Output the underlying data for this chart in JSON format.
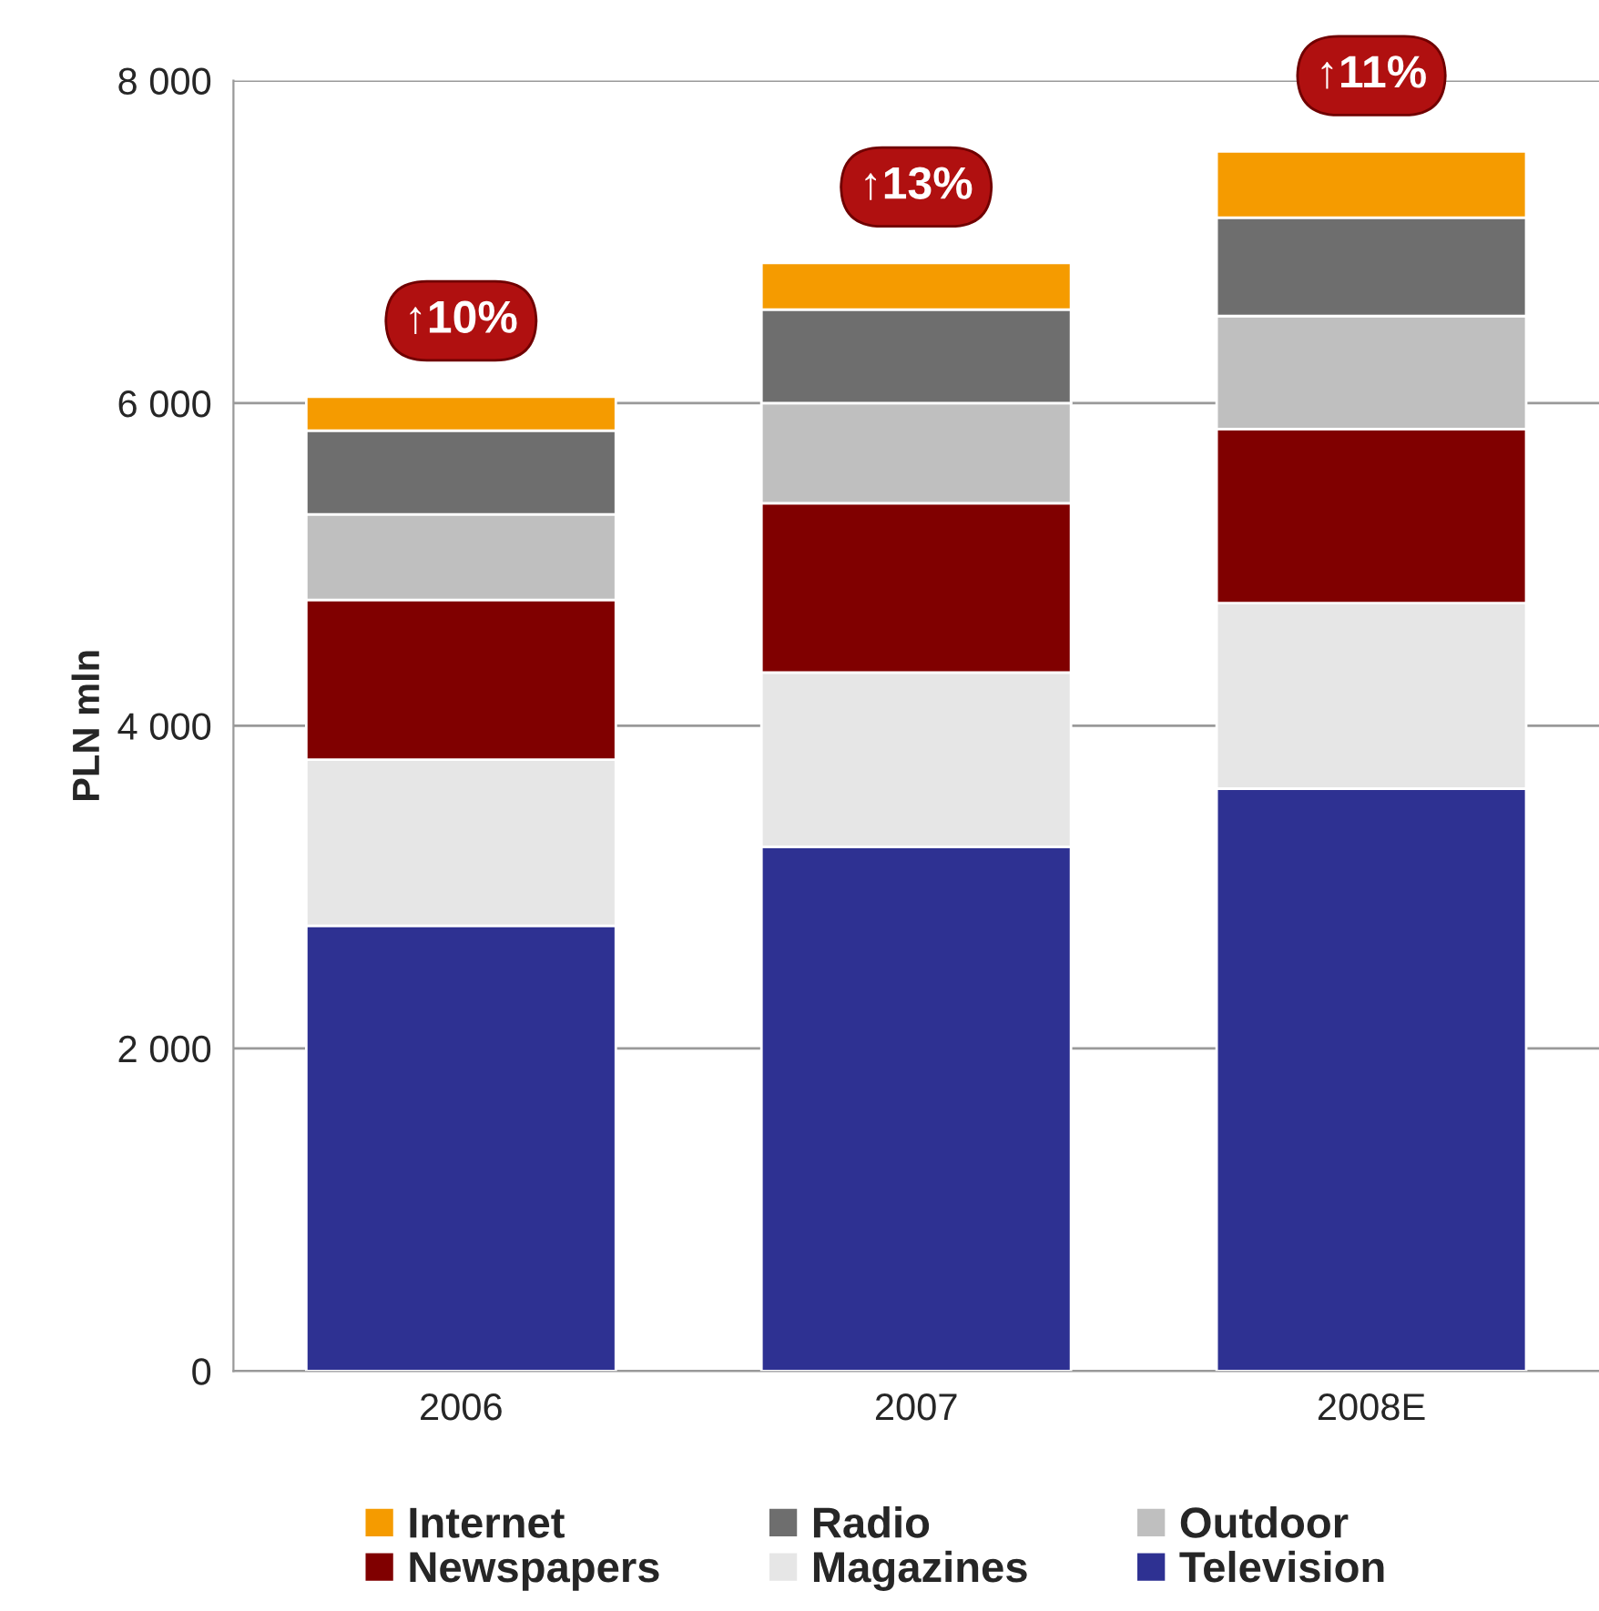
{
  "chart_data": {
    "type": "bar",
    "stacked": true,
    "ylabel": "PLN mln",
    "categories": [
      "2006",
      "2007",
      "2008E"
    ],
    "series": [
      {
        "name": "Television",
        "color": "#2e3192",
        "values": [
          2760,
          3250,
          3610
        ]
      },
      {
        "name": "Magazines",
        "color": "#e6e6e6",
        "values": [
          1030,
          1080,
          1150
        ]
      },
      {
        "name": "Newspapers",
        "color": "#800000",
        "values": [
          990,
          1050,
          1080
        ]
      },
      {
        "name": "Outdoor",
        "color": "#bfbfbf",
        "values": [
          530,
          620,
          700
        ]
      },
      {
        "name": "Radio",
        "color": "#6e6e6e",
        "values": [
          520,
          580,
          610
        ]
      },
      {
        "name": "Internet",
        "color": "#f59b00",
        "values": [
          210,
          290,
          410
        ]
      }
    ],
    "ylim": [
      0,
      8000
    ],
    "yticks": [
      0,
      {
        "value": 2000,
        "label": "2 000"
      },
      {
        "value": 4000,
        "label": "4 000"
      },
      {
        "value": 6000,
        "label": "6 000"
      },
      {
        "value": 8000,
        "label": "8 000"
      }
    ],
    "grid": "y",
    "legend": "bottom",
    "annotations": [
      "↑10%",
      "↑13%",
      "↑11%"
    ]
  }
}
